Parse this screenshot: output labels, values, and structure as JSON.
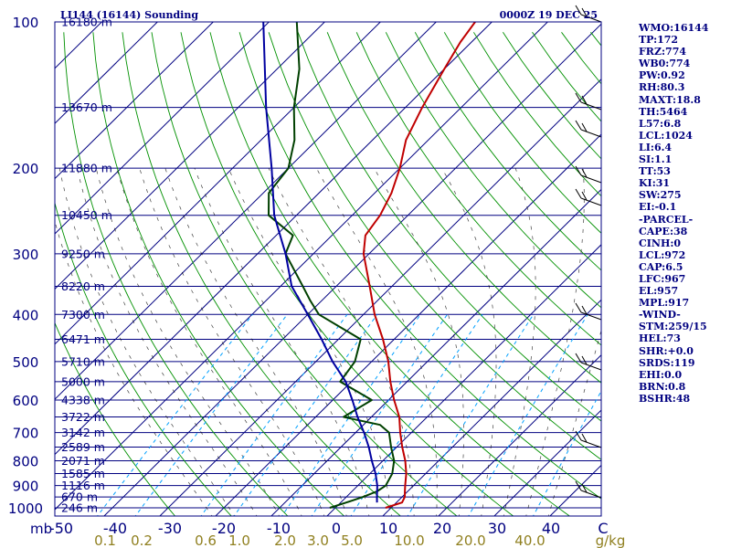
{
  "header": {
    "station": "LI144 (16144) Sounding",
    "time": "0000Z 19 DEC 25"
  },
  "chart_data": {
    "type": "skew-t",
    "pressure_levels_mb": [
      100,
      200,
      300,
      400,
      500,
      600,
      700,
      800,
      900,
      1000
    ],
    "y_unit_label": "mb",
    "height_labels": [
      {
        "p": 100,
        "text": "16180 m"
      },
      {
        "p": 150,
        "text": "13670 m"
      },
      {
        "p": 200,
        "text": "11880 m"
      },
      {
        "p": 250,
        "text": "10450 m"
      },
      {
        "p": 300,
        "text": "9250 m"
      },
      {
        "p": 350,
        "text": "8220 m"
      },
      {
        "p": 400,
        "text": "7300 m"
      },
      {
        "p": 450,
        "text": "6471 m"
      },
      {
        "p": 500,
        "text": "5710 m"
      },
      {
        "p": 550,
        "text": "5000 m"
      },
      {
        "p": 600,
        "text": "4338 m"
      },
      {
        "p": 650,
        "text": "3722 m"
      },
      {
        "p": 700,
        "text": "3142 m"
      },
      {
        "p": 750,
        "text": "2589 m"
      },
      {
        "p": 800,
        "text": "2071 m"
      },
      {
        "p": 850,
        "text": "1585 m"
      },
      {
        "p": 900,
        "text": "1116 m"
      },
      {
        "p": 950,
        "text": "670 m"
      },
      {
        "p": 1000,
        "text": "246 m"
      }
    ],
    "temperature_ticks": [
      "-50",
      "-40",
      "-30",
      "-20",
      "-10",
      "0",
      "10",
      "20",
      "30",
      "40",
      "C"
    ],
    "mixing_ratio_ticks": [
      "0.1",
      "0.2",
      "0.6",
      "1.0",
      "2.0",
      "3.0",
      "5.0",
      "10.0",
      "20.0",
      "40.0",
      "g/kg"
    ],
    "series": [
      {
        "name": "Temperature",
        "color": "#c00000",
        "points": [
          [
            1000,
            9
          ],
          [
            975,
            11
          ],
          [
            950,
            10.5
          ],
          [
            925,
            9.5
          ],
          [
            900,
            8.5
          ],
          [
            850,
            6.5
          ],
          [
            800,
            4
          ],
          [
            750,
            1
          ],
          [
            700,
            -2
          ],
          [
            650,
            -5
          ],
          [
            600,
            -9
          ],
          [
            550,
            -13
          ],
          [
            500,
            -17
          ],
          [
            450,
            -22
          ],
          [
            400,
            -28
          ],
          [
            350,
            -34
          ],
          [
            300,
            -41
          ],
          [
            275,
            -44
          ],
          [
            250,
            -45
          ],
          [
            225,
            -47
          ],
          [
            200,
            -50
          ],
          [
            175,
            -54
          ],
          [
            150,
            -57
          ],
          [
            125,
            -60
          ],
          [
            110,
            -62
          ],
          [
            100,
            -63
          ]
        ]
      },
      {
        "name": "Dewpoint",
        "color": "#004000",
        "points": [
          [
            1000,
            -1
          ],
          [
            975,
            1
          ],
          [
            950,
            3
          ],
          [
            925,
            4.5
          ],
          [
            900,
            5
          ],
          [
            850,
            4
          ],
          [
            800,
            2
          ],
          [
            750,
            -1
          ],
          [
            700,
            -4
          ],
          [
            675,
            -7
          ],
          [
            650,
            -15
          ],
          [
            600,
            -13
          ],
          [
            550,
            -22
          ],
          [
            500,
            -23
          ],
          [
            450,
            -26
          ],
          [
            400,
            -38
          ],
          [
            375,
            -42
          ],
          [
            350,
            -46
          ],
          [
            300,
            -55
          ],
          [
            275,
            -57
          ],
          [
            250,
            -65
          ],
          [
            225,
            -69
          ],
          [
            200,
            -70
          ],
          [
            175,
            -74
          ],
          [
            150,
            -80
          ],
          [
            125,
            -86
          ],
          [
            100,
            -95
          ]
        ]
      },
      {
        "name": "Parcel",
        "color": "#0000a0",
        "points": [
          [
            975,
            6.5
          ],
          [
            950,
            5.5
          ],
          [
            900,
            3.5
          ],
          [
            850,
            1
          ],
          [
            800,
            -2
          ],
          [
            750,
            -5
          ],
          [
            700,
            -8.5
          ],
          [
            650,
            -12.5
          ],
          [
            600,
            -16.5
          ],
          [
            550,
            -21
          ],
          [
            500,
            -27
          ],
          [
            450,
            -33
          ],
          [
            400,
            -40
          ],
          [
            350,
            -48
          ],
          [
            300,
            -55
          ],
          [
            250,
            -64
          ],
          [
            200,
            -73
          ],
          [
            150,
            -85
          ],
          [
            100,
            -101
          ]
        ]
      }
    ],
    "xlim": [
      -50,
      50
    ],
    "ylim": [
      1050,
      100
    ]
  },
  "side_stats": [
    "WMO:16144",
    "TP:172",
    "FRZ:774",
    "WB0:774",
    "PW:0.92",
    "RH:80.3",
    "MAXT:18.8",
    "TH:5464",
    "L57:6.8",
    "LCL:1024",
    "LI:6.4",
    "SI:1.1",
    "TT:53",
    "KI:31",
    "SW:275",
    "EI:-0.1",
    "-PARCEL-",
    "CAPE:38",
    "CINH:0",
    "LCL:972",
    "CAP:6.5",
    "LFC:967",
    "EL:957",
    "MPL:917",
    "-WIND-",
    "STM:259/15",
    "HEL:73",
    "SHR:+0.0",
    "SRDS:119",
    "EHI:0.0",
    "BRN:0.8",
    "BSHR:48"
  ],
  "colors": {
    "isobar": "#000080",
    "isotherm": "#000080",
    "dry_adiabat": "#009000",
    "moist_adiabat": "#000000",
    "mixing_ratio": "#00a0ff",
    "tick_text": "#000080",
    "mr_text": "#908020"
  }
}
